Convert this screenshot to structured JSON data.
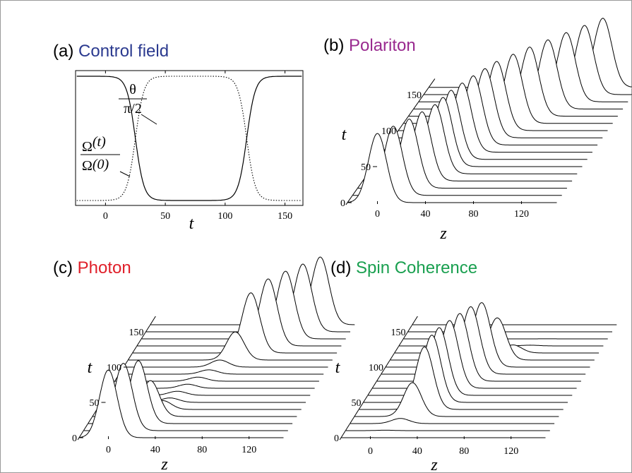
{
  "chart_data": [
    {
      "panel": "(a)",
      "title": "Control field",
      "title_color": "#2b3a8f",
      "type": "line",
      "xlabel": "t",
      "ylabel": "",
      "xlim": [
        -25,
        165
      ],
      "ylim": [
        0,
        1
      ],
      "x_ticks": [
        "0",
        "50",
        "100",
        "150"
      ],
      "grid": false,
      "series": [
        {
          "name": "Ω(t)/Ω(0)",
          "style": "solid",
          "shape": "1 - window",
          "window_on": 25,
          "window_off": 118
        },
        {
          "name": "θ/(π/2)",
          "style": "dotted",
          "shape": "window",
          "window_on": 25,
          "window_off": 118
        }
      ],
      "annotations": {
        "theta_num": "θ",
        "theta_den": "π/2",
        "omega_num_sym": "Ω",
        "omega_num_arg": "(t)",
        "omega_den_sym": "Ω",
        "omega_den_arg": "(0)"
      }
    },
    {
      "panel": "(b)",
      "title": "Polariton",
      "title_color": "#992a8f",
      "type": "waterfall",
      "xlabel": "z",
      "ylabel": "t",
      "z_ticks": [
        "0",
        "40",
        "80",
        "120"
      ],
      "t_ticks": [
        "0",
        "50",
        "100",
        "150"
      ],
      "t_slices": [
        0,
        10,
        20,
        30,
        40,
        50,
        60,
        70,
        80,
        90,
        100,
        110,
        120,
        130,
        140,
        150,
        160
      ],
      "pulse": "constant amplitude; peak z shifts from ~0 at t=0 to ~120 at t=160, slowed while control field is off"
    },
    {
      "panel": "(c)",
      "title": "Photon",
      "title_color": "#e0202a",
      "type": "waterfall",
      "xlabel": "z",
      "ylabel": "t",
      "z_ticks": [
        "0",
        "40",
        "80",
        "120"
      ],
      "t_ticks": [
        "0",
        "50",
        "100",
        "150"
      ],
      "t_slices": [
        0,
        10,
        20,
        30,
        40,
        50,
        60,
        70,
        80,
        90,
        100,
        110,
        120,
        130,
        140,
        150,
        160
      ],
      "pulse": "amplitude near zero during storage (t≈30–110), full before and after"
    },
    {
      "panel": "(d)",
      "title": "Spin Coherence",
      "title_color": "#1aa050",
      "type": "waterfall",
      "xlabel": "z",
      "ylabel": "t",
      "z_ticks": [
        "0",
        "40",
        "80",
        "120"
      ],
      "t_ticks": [
        "0",
        "50",
        "100",
        "150"
      ],
      "t_slices": [
        0,
        10,
        20,
        30,
        40,
        50,
        60,
        70,
        80,
        90,
        100,
        110,
        120,
        130,
        140,
        150,
        160
      ],
      "pulse": "amplitude near zero before/after storage, full during storage (t≈30–110)"
    }
  ]
}
